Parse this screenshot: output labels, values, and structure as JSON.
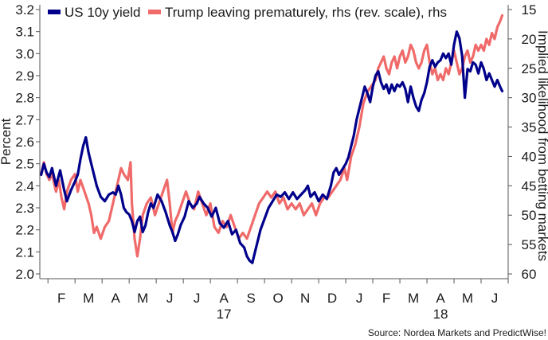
{
  "chart_data": {
    "type": "line",
    "ylabel_left": "Percent",
    "ylabel_right": "Implied likelihood from betting markets",
    "ylim_left": [
      2.0,
      3.2
    ],
    "ylim_right": [
      15,
      60
    ],
    "right_axis_reversed": true,
    "x_months": [
      "F",
      "M",
      "A",
      "M",
      "J",
      "J",
      "A",
      "S",
      "O",
      "N",
      "D",
      "J",
      "F",
      "M",
      "A",
      "M",
      "J"
    ],
    "x_years": [
      {
        "label": "17",
        "month_index": 6
      },
      {
        "label": "18",
        "month_index": 14
      }
    ],
    "x_range_months": [
      0.2,
      17.5
    ],
    "yticks_left": [
      "2.0",
      "2.1",
      "2.2",
      "2.3",
      "2.4",
      "2.5",
      "2.6",
      "2.7",
      "2.8",
      "2.9",
      "3.0",
      "3.1",
      "3.2"
    ],
    "yticks_right": [
      "15",
      "20",
      "25",
      "30",
      "35",
      "40",
      "45",
      "50",
      "55",
      "60"
    ],
    "grid": false,
    "legend_position": "top-left",
    "series": [
      {
        "name": "US 10y yield",
        "axis": "left",
        "color": "#00008b",
        "points": [
          [
            0.25,
            2.45
          ],
          [
            0.35,
            2.5
          ],
          [
            0.45,
            2.46
          ],
          [
            0.55,
            2.44
          ],
          [
            0.65,
            2.48
          ],
          [
            0.8,
            2.4
          ],
          [
            0.95,
            2.47
          ],
          [
            1.1,
            2.38
          ],
          [
            1.2,
            2.33
          ],
          [
            1.35,
            2.38
          ],
          [
            1.5,
            2.42
          ],
          [
            1.6,
            2.45
          ],
          [
            1.7,
            2.52
          ],
          [
            1.8,
            2.58
          ],
          [
            1.9,
            2.62
          ],
          [
            2.0,
            2.55
          ],
          [
            2.1,
            2.5
          ],
          [
            2.2,
            2.45
          ],
          [
            2.3,
            2.4
          ],
          [
            2.45,
            2.35
          ],
          [
            2.6,
            2.33
          ],
          [
            2.75,
            2.36
          ],
          [
            2.9,
            2.37
          ],
          [
            3.0,
            2.36
          ],
          [
            3.1,
            2.4
          ],
          [
            3.2,
            2.36
          ],
          [
            3.3,
            2.3
          ],
          [
            3.4,
            2.28
          ],
          [
            3.5,
            2.27
          ],
          [
            3.6,
            2.24
          ],
          [
            3.7,
            2.19
          ],
          [
            3.8,
            2.24
          ],
          [
            3.9,
            2.26
          ],
          [
            4.0,
            2.19
          ],
          [
            4.1,
            2.22
          ],
          [
            4.2,
            2.28
          ],
          [
            4.3,
            2.32
          ],
          [
            4.4,
            2.3
          ],
          [
            4.55,
            2.36
          ],
          [
            4.7,
            2.33
          ],
          [
            4.85,
            2.28
          ],
          [
            5.0,
            2.22
          ],
          [
            5.1,
            2.19
          ],
          [
            5.2,
            2.15
          ],
          [
            5.3,
            2.18
          ],
          [
            5.4,
            2.22
          ],
          [
            5.55,
            2.26
          ],
          [
            5.7,
            2.33
          ],
          [
            5.85,
            2.3
          ],
          [
            6.0,
            2.32
          ],
          [
            6.1,
            2.35
          ],
          [
            6.25,
            2.32
          ],
          [
            6.4,
            2.3
          ],
          [
            6.55,
            2.26
          ],
          [
            6.7,
            2.3
          ],
          [
            6.85,
            2.23
          ],
          [
            7.0,
            2.21
          ],
          [
            7.15,
            2.24
          ],
          [
            7.3,
            2.18
          ],
          [
            7.45,
            2.2
          ],
          [
            7.6,
            2.14
          ],
          [
            7.75,
            2.12
          ],
          [
            7.85,
            2.08
          ],
          [
            7.95,
            2.06
          ],
          [
            8.05,
            2.05
          ],
          [
            8.15,
            2.1
          ],
          [
            8.25,
            2.15
          ],
          [
            8.35,
            2.2
          ],
          [
            8.5,
            2.25
          ],
          [
            8.65,
            2.3
          ],
          [
            8.8,
            2.33
          ],
          [
            8.95,
            2.36
          ],
          [
            9.1,
            2.35
          ],
          [
            9.25,
            2.37
          ],
          [
            9.4,
            2.34
          ],
          [
            9.55,
            2.37
          ],
          [
            9.7,
            2.34
          ],
          [
            9.85,
            2.36
          ],
          [
            10.0,
            2.38
          ],
          [
            10.1,
            2.4
          ],
          [
            10.2,
            2.35
          ],
          [
            10.35,
            2.37
          ],
          [
            10.5,
            2.33
          ],
          [
            10.65,
            2.36
          ],
          [
            10.8,
            2.34
          ],
          [
            10.95,
            2.4
          ],
          [
            11.05,
            2.46
          ],
          [
            11.15,
            2.48
          ],
          [
            11.25,
            2.45
          ],
          [
            11.35,
            2.47
          ],
          [
            11.5,
            2.5
          ],
          [
            11.6,
            2.53
          ],
          [
            11.7,
            2.58
          ],
          [
            11.8,
            2.63
          ],
          [
            11.9,
            2.7
          ],
          [
            12.0,
            2.75
          ],
          [
            12.1,
            2.8
          ],
          [
            12.2,
            2.85
          ],
          [
            12.3,
            2.82
          ],
          [
            12.4,
            2.78
          ],
          [
            12.5,
            2.85
          ],
          [
            12.6,
            2.9
          ],
          [
            12.7,
            2.92
          ],
          [
            12.8,
            2.87
          ],
          [
            12.9,
            2.84
          ],
          [
            13.0,
            2.86
          ],
          [
            13.1,
            2.82
          ],
          [
            13.2,
            2.86
          ],
          [
            13.3,
            2.83
          ],
          [
            13.4,
            2.86
          ],
          [
            13.5,
            2.85
          ],
          [
            13.6,
            2.87
          ],
          [
            13.7,
            2.84
          ],
          [
            13.8,
            2.78
          ],
          [
            13.9,
            2.85
          ],
          [
            14.0,
            2.8
          ],
          [
            14.1,
            2.76
          ],
          [
            14.2,
            2.74
          ],
          [
            14.3,
            2.79
          ],
          [
            14.4,
            2.82
          ],
          [
            14.5,
            2.87
          ],
          [
            14.6,
            2.94
          ],
          [
            14.7,
            2.97
          ],
          [
            14.8,
            2.94
          ],
          [
            14.9,
            2.96
          ],
          [
            15.0,
            2.97
          ],
          [
            15.1,
            3.0
          ],
          [
            15.2,
            2.98
          ],
          [
            15.3,
            3.0
          ],
          [
            15.4,
            2.95
          ],
          [
            15.5,
            3.04
          ],
          [
            15.6,
            3.1
          ],
          [
            15.7,
            3.07
          ],
          [
            15.8,
            2.99
          ],
          [
            15.9,
            2.8
          ],
          [
            16.0,
            2.93
          ],
          [
            16.1,
            2.92
          ],
          [
            16.2,
            2.96
          ],
          [
            16.3,
            2.95
          ],
          [
            16.4,
            2.91
          ],
          [
            16.5,
            2.96
          ],
          [
            16.6,
            2.93
          ],
          [
            16.7,
            2.88
          ],
          [
            16.8,
            2.91
          ],
          [
            16.9,
            2.88
          ],
          [
            17.0,
            2.85
          ],
          [
            17.1,
            2.88
          ],
          [
            17.2,
            2.85
          ],
          [
            17.28,
            2.83
          ]
        ]
      },
      {
        "name": "Trump leaving prematurely, rhs (rev. scale), rhs",
        "axis": "right",
        "color": "#f06a6a",
        "points": [
          [
            0.25,
            43
          ],
          [
            0.35,
            41
          ],
          [
            0.45,
            43
          ],
          [
            0.55,
            44
          ],
          [
            0.65,
            43
          ],
          [
            0.8,
            46
          ],
          [
            0.9,
            44
          ],
          [
            1.0,
            47
          ],
          [
            1.1,
            49
          ],
          [
            1.2,
            46
          ],
          [
            1.35,
            44
          ],
          [
            1.5,
            43
          ],
          [
            1.6,
            46
          ],
          [
            1.7,
            44
          ],
          [
            1.85,
            46
          ],
          [
            2.0,
            48
          ],
          [
            2.1,
            50
          ],
          [
            2.2,
            53
          ],
          [
            2.3,
            52
          ],
          [
            2.45,
            54
          ],
          [
            2.6,
            52
          ],
          [
            2.75,
            51
          ],
          [
            2.9,
            48
          ],
          [
            3.0,
            46
          ],
          [
            3.1,
            44
          ],
          [
            3.2,
            42
          ],
          [
            3.3,
            43
          ],
          [
            3.45,
            44
          ],
          [
            3.55,
            41
          ],
          [
            3.6,
            48
          ],
          [
            3.7,
            54
          ],
          [
            3.8,
            57
          ],
          [
            3.9,
            54
          ],
          [
            4.0,
            50
          ],
          [
            4.15,
            48
          ],
          [
            4.3,
            47
          ],
          [
            4.45,
            50
          ],
          [
            4.6,
            48
          ],
          [
            4.75,
            46
          ],
          [
            4.9,
            44
          ],
          [
            5.0,
            48
          ],
          [
            5.1,
            53
          ],
          [
            5.2,
            51
          ],
          [
            5.3,
            50
          ],
          [
            5.45,
            48
          ],
          [
            5.6,
            46
          ],
          [
            5.75,
            48
          ],
          [
            5.9,
            49
          ],
          [
            6.05,
            46
          ],
          [
            6.2,
            48
          ],
          [
            6.35,
            50
          ],
          [
            6.5,
            48
          ],
          [
            6.65,
            52
          ],
          [
            6.8,
            53
          ],
          [
            6.95,
            51
          ],
          [
            7.1,
            52
          ],
          [
            7.25,
            50
          ],
          [
            7.4,
            52
          ],
          [
            7.55,
            54
          ],
          [
            7.7,
            53
          ],
          [
            7.85,
            54
          ],
          [
            8.0,
            52
          ],
          [
            8.15,
            50
          ],
          [
            8.3,
            48
          ],
          [
            8.45,
            47
          ],
          [
            8.6,
            46
          ],
          [
            8.75,
            47
          ],
          [
            8.9,
            46
          ],
          [
            9.05,
            48
          ],
          [
            9.2,
            47
          ],
          [
            9.35,
            49
          ],
          [
            9.5,
            48
          ],
          [
            9.65,
            49
          ],
          [
            9.8,
            48
          ],
          [
            9.95,
            50
          ],
          [
            10.1,
            49
          ],
          [
            10.25,
            48
          ],
          [
            10.4,
            50
          ],
          [
            10.55,
            48
          ],
          [
            10.7,
            47
          ],
          [
            10.85,
            47
          ],
          [
            11.0,
            46
          ],
          [
            11.15,
            45
          ],
          [
            11.3,
            44
          ],
          [
            11.45,
            42
          ],
          [
            11.55,
            44
          ],
          [
            11.7,
            40
          ],
          [
            11.85,
            38
          ],
          [
            12.0,
            35
          ],
          [
            12.15,
            31
          ],
          [
            12.3,
            29
          ],
          [
            12.45,
            28
          ],
          [
            12.6,
            27
          ],
          [
            12.7,
            25
          ],
          [
            12.8,
            24
          ],
          [
            12.9,
            23
          ],
          [
            13.0,
            25
          ],
          [
            13.1,
            26
          ],
          [
            13.2,
            24
          ],
          [
            13.3,
            23
          ],
          [
            13.4,
            25
          ],
          [
            13.5,
            23
          ],
          [
            13.6,
            22
          ],
          [
            13.7,
            24
          ],
          [
            13.8,
            23
          ],
          [
            13.9,
            21
          ],
          [
            14.0,
            22
          ],
          [
            14.1,
            24
          ],
          [
            14.2,
            25
          ],
          [
            14.3,
            24
          ],
          [
            14.4,
            22
          ],
          [
            14.5,
            21
          ],
          [
            14.6,
            24
          ],
          [
            14.7,
            26
          ],
          [
            14.8,
            25
          ],
          [
            14.9,
            27
          ],
          [
            15.0,
            26
          ],
          [
            15.1,
            27
          ],
          [
            15.2,
            25
          ],
          [
            15.3,
            26
          ],
          [
            15.4,
            24
          ],
          [
            15.5,
            22
          ],
          [
            15.6,
            24
          ],
          [
            15.7,
            26
          ],
          [
            15.8,
            25
          ],
          [
            15.9,
            23
          ],
          [
            16.0,
            22
          ],
          [
            16.1,
            24
          ],
          [
            16.2,
            23
          ],
          [
            16.3,
            21
          ],
          [
            16.4,
            22
          ],
          [
            16.5,
            21
          ],
          [
            16.6,
            22
          ],
          [
            16.7,
            20
          ],
          [
            16.8,
            21
          ],
          [
            16.9,
            19
          ],
          [
            17.0,
            20
          ],
          [
            17.1,
            18
          ],
          [
            17.2,
            17
          ],
          [
            17.28,
            16
          ]
        ]
      }
    ],
    "source": "Source: Nordea Markets and PredictWise!"
  }
}
